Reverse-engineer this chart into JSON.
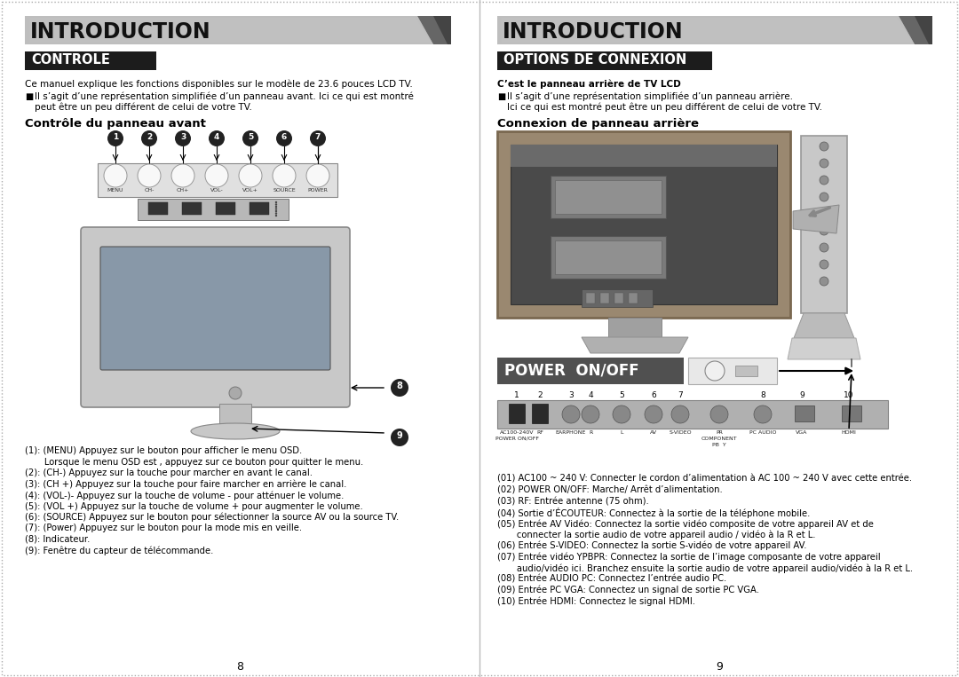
{
  "bg_color": "#ffffff",
  "outer_border": "#cccccc",
  "left_title": "INTRODUCTION",
  "right_title": "INTRODUCTION",
  "left_section_title": "CONTROLE",
  "right_section_title": "OPTIONS DE CONNEXION",
  "left_intro": "Ce manuel explique les fonctions disponibles sur le modèle de 23.6 pouces LCD TV.",
  "left_bullet": "Il s’agit d’une représentation simplifiée d’un panneau avant. Ici ce qui est montré\npeut être un peu différent de celui de votre TV.",
  "right_intro_bold": "C’est le panneau arrière de TV LCD",
  "right_bullet": "Il s’agit d’une représentation simplifiée d’un panneau arrière.\nIci ce qui est montré peut être un peu différent de celui de votre TV.",
  "left_sub": "Contrôle du panneau avant",
  "right_sub": "Connexion de panneau arrière",
  "button_labels": [
    "1",
    "2",
    "3",
    "4",
    "5",
    "6",
    "7"
  ],
  "button_texts": [
    "MENU",
    "CH-",
    "CH+",
    "VOL-",
    "VOL+",
    "SOURCE",
    "POWER"
  ],
  "left_desc": [
    "(1): (MENU) Appuyez sur le bouton pour afficher le menu OSD.",
    "       Lorsque le menu OSD est , appuyez sur ce bouton pour quitter le menu.",
    "(2): (CH-) Appuyez sur la touche pour marcher en avant le canal.",
    "(3): (CH +) Appuyez sur la touche pour faire marcher en arrière le canal.",
    "(4): (VOL-)- Appuyez sur la touche de volume - pour atténuer le volume.",
    "(5): (VOL +) Appuyez sur la touche de volume + pour augmenter le volume.",
    "(6): (SOURCE) Appuyez sur le bouton pour sélectionner la source AV ou la source TV.",
    "(7): (Power) Appuyez sur le bouton pour la mode mis en veille.",
    "(8): Indicateur.",
    "(9): Fenêtre du capteur de télécommande."
  ],
  "right_desc": [
    "(01) AC100 ~ 240 V: Connecter le cordon d’alimentation à AC 100 ~ 240 V avec cette entrée.",
    "(02) POWER ON/OFF: Marche/ Arrêt d’alimentation.",
    "(03) RF: Entrée antenne (75 ohm).",
    "(04) Sortie d’ÉCOUTEUR: Connectez à la sortie de la téléphone mobile.",
    "(05) Entrée AV Vidéo: Connectez la sortie vidéo composite de votre appareil AV et de",
    "       connecter la sortie audio de votre appareil audio / vidéo à la R et L.",
    "(06) Entrée S-VIDEO: Connectez la sortie S-vidéo de votre appareil AV.",
    "(07) Entrée vidéo YPBPR: Connectez la sortie de l’image composante de votre appareil",
    "       audio/vidéo ici. Branchez ensuite la sortie audio de votre appareil audio/vidéo à la R et L.",
    "(08) Entrée AUDIO PC: Connectez l’entrée audio PC.",
    "(09) Entrée PC VGA: Connectez un signal de sortie PC VGA.",
    "(10) Entrée HDMI: Connectez le signal HDMI."
  ],
  "page_left": "8",
  "page_right": "9"
}
